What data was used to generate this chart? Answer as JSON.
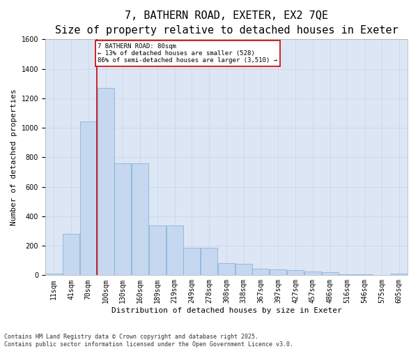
{
  "title_line1": "7, BATHERN ROAD, EXETER, EX2 7QE",
  "title_line2": "Size of property relative to detached houses in Exeter",
  "xlabel": "Distribution of detached houses by size in Exeter",
  "ylabel": "Number of detached properties",
  "bar_color": "#c5d8f0",
  "bar_edge_color": "#7aadd4",
  "grid_color": "#c8d4e8",
  "background_color": "#dce6f5",
  "annotation_text": "7 BATHERN ROAD: 80sqm\n← 13% of detached houses are smaller (528)\n86% of semi-detached houses are larger (3,510) →",
  "annotation_box_color": "#ffffff",
  "annotation_border_color": "#cc0000",
  "vline_color": "#cc0000",
  "vline_x_index": 2,
  "categories": [
    "11sqm",
    "41sqm",
    "70sqm",
    "100sqm",
    "130sqm",
    "160sqm",
    "189sqm",
    "219sqm",
    "249sqm",
    "278sqm",
    "308sqm",
    "338sqm",
    "367sqm",
    "397sqm",
    "427sqm",
    "457sqm",
    "486sqm",
    "516sqm",
    "546sqm",
    "575sqm",
    "605sqm"
  ],
  "values": [
    10,
    280,
    1045,
    1270,
    760,
    760,
    340,
    340,
    185,
    185,
    80,
    75,
    45,
    40,
    37,
    25,
    20,
    7,
    7,
    2,
    10
  ],
  "ylim": [
    0,
    1600
  ],
  "yticks": [
    0,
    200,
    400,
    600,
    800,
    1000,
    1200,
    1400,
    1600
  ],
  "footnote": "Contains HM Land Registry data © Crown copyright and database right 2025.\nContains public sector information licensed under the Open Government Licence v3.0.",
  "title_fontsize": 11,
  "subtitle_fontsize": 9.5,
  "label_fontsize": 8,
  "tick_fontsize": 7,
  "footnote_fontsize": 6
}
